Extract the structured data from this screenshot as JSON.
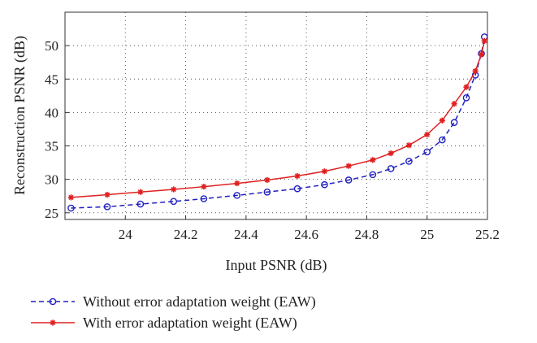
{
  "chart_data": {
    "type": "line",
    "title": "",
    "xlabel": "Input PSNR (dB)",
    "ylabel": "Reconstruction PSNR (dB)",
    "xlim": [
      23.8,
      25.2
    ],
    "ylim": [
      24,
      55
    ],
    "xticks": [
      24,
      24.2,
      24.4,
      24.6,
      24.8,
      25,
      25.2
    ],
    "xtick_labels": [
      "24",
      "24.2",
      "24.4",
      "24.6",
      "24.8",
      "25",
      "25.2"
    ],
    "yticks": [
      25,
      30,
      35,
      40,
      45,
      50
    ],
    "ytick_labels": [
      "25",
      "30",
      "35",
      "40",
      "45",
      "50"
    ],
    "grid": true,
    "legend_position": "bottom",
    "series": [
      {
        "name": "Without error adaptation weight (EAW)",
        "color": "#2020c0",
        "line_style": "dashed",
        "marker": "circle",
        "x": [
          23.82,
          23.94,
          24.05,
          24.16,
          24.26,
          24.37,
          24.47,
          24.57,
          24.66,
          24.74,
          24.82,
          24.88,
          24.94,
          25.0,
          25.05,
          25.09,
          25.13,
          25.16,
          25.18,
          25.19
        ],
        "y": [
          25.7,
          25.9,
          26.3,
          26.7,
          27.1,
          27.6,
          28.1,
          28.6,
          29.2,
          29.9,
          30.7,
          31.6,
          32.7,
          34.1,
          35.9,
          38.5,
          42.2,
          45.6,
          48.8,
          51.3
        ]
      },
      {
        "name": "With error adaptation weight (EAW)",
        "color": "#e02020",
        "line_style": "solid",
        "marker": "asterisk",
        "x": [
          23.82,
          23.94,
          24.05,
          24.16,
          24.26,
          24.37,
          24.47,
          24.57,
          24.66,
          24.74,
          24.82,
          24.88,
          24.94,
          25.0,
          25.05,
          25.09,
          25.13,
          25.16,
          25.18,
          25.19
        ],
        "y": [
          27.3,
          27.7,
          28.1,
          28.5,
          28.9,
          29.4,
          29.9,
          30.5,
          31.2,
          32.0,
          32.9,
          33.9,
          35.1,
          36.7,
          38.8,
          41.3,
          43.8,
          46.2,
          48.7,
          50.7
        ]
      }
    ]
  }
}
